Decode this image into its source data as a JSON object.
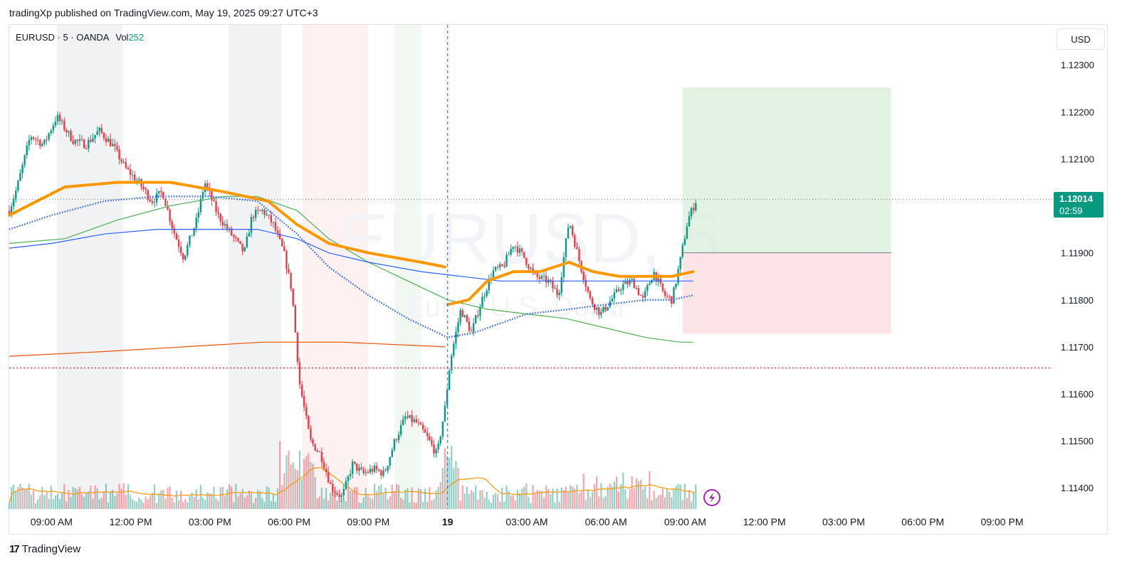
{
  "header": {
    "published_line": "tradingXp published on TradingView.com, May 19, 2025 09:27 UTC+3"
  },
  "legend": {
    "symbol_line": "EURUSD · 5 · OANDA",
    "vol_label": "Vol",
    "vol_value": "252"
  },
  "currency_button": "USD",
  "watermark": {
    "symbol": "EURUSD, 5",
    "subtitle": "Euro / U.S. Dollar"
  },
  "price_badge": {
    "price": "1.12014",
    "countdown": "02:59"
  },
  "footer": {
    "brand": "TradingView",
    "logo_text": "17"
  },
  "colors": {
    "up": "#089981",
    "down": "#f23645",
    "ema_thick": "#ff9800",
    "dotted_blue": "#2962ff",
    "ma_blue": "#2962ff",
    "ma_green": "#4caf50",
    "ma_orange_flat": "#e65100",
    "vol_ma": "#ff9800",
    "target_zone": "#d8eed9",
    "stop_zone": "#fde0e3"
  },
  "chart_data": {
    "type": "candlestick",
    "symbol": "EURUSD",
    "timeframe": "5",
    "exchange": "OANDA",
    "y_axis": {
      "ticks": [
        "1.12300",
        "1.12200",
        "1.12100",
        "1.11900",
        "1.11800",
        "1.11700",
        "1.11600",
        "1.11500",
        "1.11400"
      ],
      "range": [
        1.11355,
        1.12385
      ]
    },
    "x_axis": {
      "ticks": [
        "09:00 AM",
        "12:00 PM",
        "03:00 PM",
        "06:00 PM",
        "09:00 PM",
        "19",
        "03:00 AM",
        "06:00 AM",
        "09:00 AM",
        "12:00 PM",
        "03:00 PM",
        "06:00 PM",
        "09:00 PM"
      ],
      "tick_hours": [
        9,
        12,
        15,
        18,
        21,
        24,
        27,
        30,
        33,
        36,
        39,
        42,
        45
      ],
      "range_hours": [
        7.4,
        46.9
      ]
    },
    "last_price": 1.12014,
    "horizontal_level_red": 1.11655,
    "session_shading": [
      {
        "from_h": 9.2,
        "to_h": 11.7,
        "color": "gray"
      },
      {
        "from_h": 15.7,
        "to_h": 17.7,
        "color": "gray"
      },
      {
        "from_h": 18.5,
        "to_h": 21.0,
        "color": "red"
      },
      {
        "from_h": 22.0,
        "to_h": 23.0,
        "color": "green"
      }
    ],
    "day_separator_h": 24,
    "position_tool": {
      "from_h": 32.9,
      "to_h": 40.8,
      "entry": 1.119,
      "target": 1.12252,
      "stop": 1.11728
    },
    "price_path": [
      [
        7.4,
        1.1199
      ],
      [
        7.7,
        1.1204
      ],
      [
        8.2,
        1.1215
      ],
      [
        8.7,
        1.1213
      ],
      [
        9.2,
        1.1219
      ],
      [
        9.8,
        1.1214
      ],
      [
        10.3,
        1.1213
      ],
      [
        10.8,
        1.1216
      ],
      [
        11.3,
        1.1213
      ],
      [
        11.8,
        1.1208
      ],
      [
        12.3,
        1.1205
      ],
      [
        12.8,
        1.1201
      ],
      [
        13.2,
        1.1203
      ],
      [
        13.6,
        1.1195
      ],
      [
        14.0,
        1.1189
      ],
      [
        14.5,
        1.1197
      ],
      [
        14.8,
        1.1205
      ],
      [
        15.3,
        1.1198
      ],
      [
        15.8,
        1.1194
      ],
      [
        16.3,
        1.119
      ],
      [
        16.6,
        1.1198
      ],
      [
        17.0,
        1.1199
      ],
      [
        17.4,
        1.1196
      ],
      [
        17.8,
        1.119
      ],
      [
        18.1,
        1.1182
      ],
      [
        18.4,
        1.1162
      ],
      [
        18.8,
        1.115
      ],
      [
        19.2,
        1.1147
      ],
      [
        19.6,
        1.114
      ],
      [
        20.0,
        1.1138
      ],
      [
        20.4,
        1.1145
      ],
      [
        20.8,
        1.1143
      ],
      [
        21.2,
        1.1144
      ],
      [
        21.6,
        1.1143
      ],
      [
        22.0,
        1.115
      ],
      [
        22.4,
        1.1155
      ],
      [
        22.8,
        1.1154
      ],
      [
        23.2,
        1.1151
      ],
      [
        23.6,
        1.1147
      ],
      [
        23.9,
        1.1157
      ],
      [
        24.1,
        1.1167
      ],
      [
        24.5,
        1.1178
      ],
      [
        24.9,
        1.1173
      ],
      [
        25.3,
        1.118
      ],
      [
        25.7,
        1.1186
      ],
      [
        26.1,
        1.1187
      ],
      [
        26.5,
        1.1192
      ],
      [
        26.9,
        1.1189
      ],
      [
        27.3,
        1.1185
      ],
      [
        27.8,
        1.1184
      ],
      [
        28.2,
        1.1181
      ],
      [
        28.6,
        1.1197
      ],
      [
        29.0,
        1.1188
      ],
      [
        29.4,
        1.118
      ],
      [
        29.8,
        1.1177
      ],
      [
        30.2,
        1.118
      ],
      [
        30.6,
        1.1183
      ],
      [
        31.0,
        1.1184
      ],
      [
        31.4,
        1.118
      ],
      [
        31.8,
        1.1186
      ],
      [
        32.2,
        1.1181
      ],
      [
        32.5,
        1.118
      ],
      [
        32.8,
        1.1188
      ],
      [
        33.1,
        1.1197
      ],
      [
        33.4,
        1.1201
      ]
    ],
    "ema_thick_path": [
      [
        7.4,
        1.1198
      ],
      [
        9.5,
        1.1204
      ],
      [
        11.5,
        1.1205
      ],
      [
        13.5,
        1.1205
      ],
      [
        15.5,
        1.1203
      ],
      [
        17.2,
        1.1201
      ],
      [
        18.3,
        1.1196
      ],
      [
        19.5,
        1.1192
      ],
      [
        21,
        1.119
      ],
      [
        23,
        1.1188
      ],
      [
        23.9,
        1.1187
      ],
      [
        null,
        null
      ],
      [
        24.0,
        1.1179
      ],
      [
        24.8,
        1.118
      ],
      [
        25.5,
        1.1184
      ],
      [
        26.5,
        1.1186
      ],
      [
        27.5,
        1.1186
      ],
      [
        28.6,
        1.1188
      ],
      [
        29.5,
        1.1186
      ],
      [
        30.5,
        1.1185
      ],
      [
        31.5,
        1.1185
      ],
      [
        32.5,
        1.1185
      ],
      [
        33.3,
        1.1186
      ]
    ],
    "dotted_blue_path": [
      [
        7.4,
        1.1195
      ],
      [
        9,
        1.1198
      ],
      [
        11,
        1.1201
      ],
      [
        13,
        1.1202
      ],
      [
        15,
        1.1202
      ],
      [
        16.8,
        1.1201
      ],
      [
        18.3,
        1.1194
      ],
      [
        19.5,
        1.1187
      ],
      [
        21,
        1.1181
      ],
      [
        22.5,
        1.1176
      ],
      [
        24,
        1.1172
      ],
      [
        25,
        1.1173
      ],
      [
        26,
        1.1175
      ],
      [
        27,
        1.1177
      ],
      [
        28.6,
        1.1178
      ],
      [
        30,
        1.1179
      ],
      [
        31.5,
        1.118
      ],
      [
        32.5,
        1.118
      ],
      [
        33.3,
        1.1181
      ]
    ],
    "ma_blue_path": [
      [
        7.4,
        1.1191
      ],
      [
        9,
        1.1192
      ],
      [
        11,
        1.1194
      ],
      [
        13,
        1.1195
      ],
      [
        15,
        1.1195
      ],
      [
        16.8,
        1.1195
      ],
      [
        18.3,
        1.1193
      ],
      [
        19.5,
        1.119
      ],
      [
        21,
        1.1188
      ],
      [
        23,
        1.1186
      ],
      [
        24.5,
        1.1185
      ],
      [
        26,
        1.1184
      ],
      [
        28,
        1.1184
      ],
      [
        30,
        1.1184
      ],
      [
        31.5,
        1.1184
      ],
      [
        33.3,
        1.1184
      ]
    ],
    "ma_green_path": [
      [
        7.4,
        1.1192
      ],
      [
        9.5,
        1.1193
      ],
      [
        11.5,
        1.1197
      ],
      [
        13.5,
        1.12
      ],
      [
        15.5,
        1.1202
      ],
      [
        16.8,
        1.1202
      ],
      [
        18.3,
        1.1199
      ],
      [
        19.5,
        1.1193
      ],
      [
        21,
        1.1188
      ],
      [
        22.5,
        1.1184
      ],
      [
        24,
        1.118
      ],
      [
        25.5,
        1.1178
      ],
      [
        27,
        1.1177
      ],
      [
        28.5,
        1.1176
      ],
      [
        30,
        1.1174
      ],
      [
        31.5,
        1.1172
      ],
      [
        32.8,
        1.1171
      ],
      [
        33.3,
        1.1171
      ]
    ],
    "ma_orange_flat_path": [
      [
        7.4,
        1.1168
      ],
      [
        11,
        1.1169
      ],
      [
        14,
        1.117
      ],
      [
        17,
        1.1171
      ],
      [
        20,
        1.1171
      ],
      [
        23.9,
        1.117
      ],
      [
        null,
        null
      ],
      [
        24.0,
        1.117
      ]
    ],
    "volume_max_hint": "bars scaled to pane height"
  }
}
